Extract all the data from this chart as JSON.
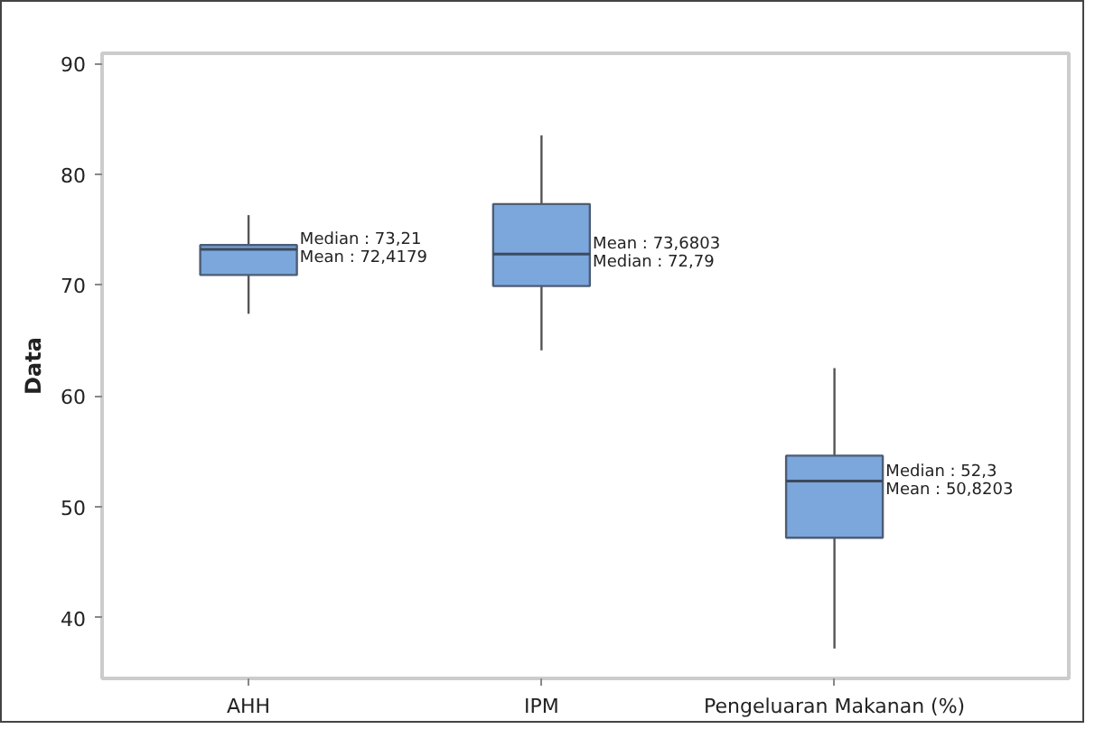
{
  "chart_data": {
    "type": "box",
    "ylabel": "Data",
    "categories": [
      "AHH",
      "IPM",
      "Pengeluaran Makanan (%)"
    ],
    "color": "#7ba7dc",
    "boxes": [
      {
        "low": 67.4,
        "q1": 70.9,
        "median": 73.21,
        "q3": 73.6,
        "high": 76.3
      },
      {
        "low": 64.1,
        "q1": 69.9,
        "median": 72.79,
        "q3": 77.3,
        "high": 83.5
      },
      {
        "low": 37.2,
        "q1": 47.2,
        "median": 52.3,
        "q3": 54.6,
        "high": 62.5
      }
    ],
    "ylim": [
      34.5,
      90.9
    ],
    "yticks": [
      40,
      50,
      60,
      70,
      80,
      90
    ],
    "grid": false,
    "annotations": [
      "Median : 73,21",
      "Mean : 72,4179",
      "Mean : 73,6803",
      "Median : 72,79",
      "Median : 52,3",
      "Mean : 50,8203"
    ]
  }
}
